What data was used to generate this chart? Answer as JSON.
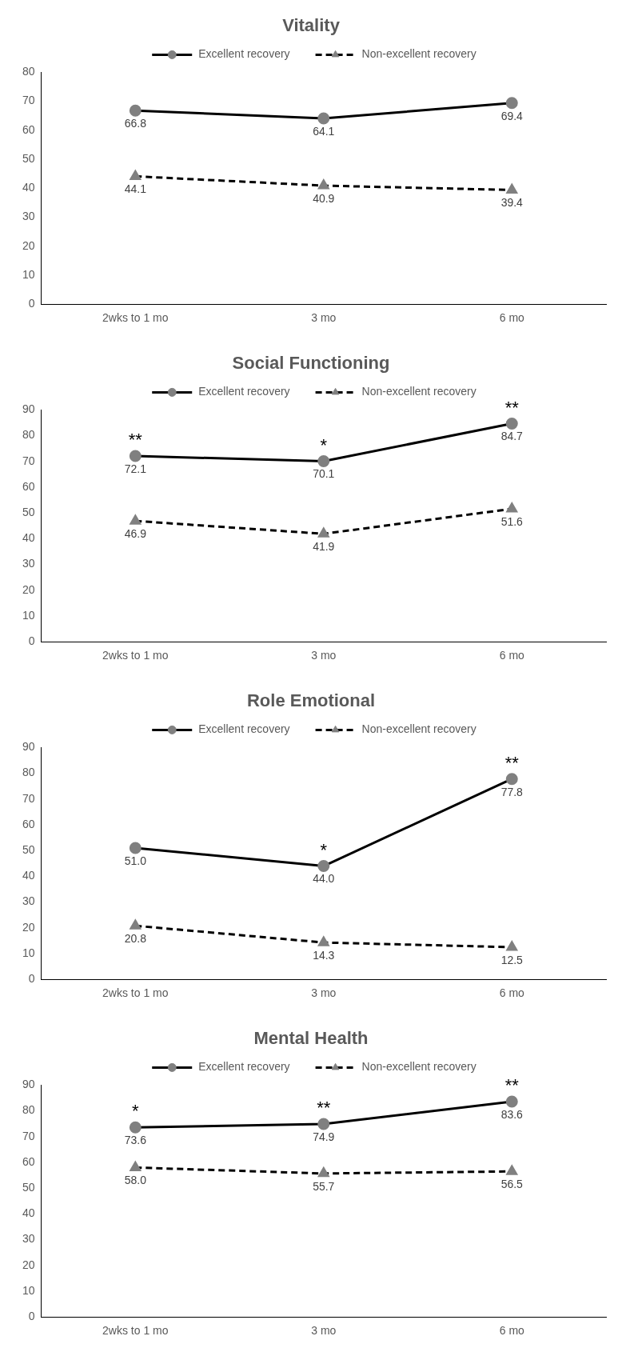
{
  "chart_data": [
    {
      "type": "line",
      "title": "Vitality",
      "categories": [
        "2wks to 1 mo",
        "3 mo",
        "6 mo"
      ],
      "ylim": [
        0,
        80
      ],
      "yticks": [
        0,
        10,
        20,
        30,
        40,
        50,
        60,
        70,
        80
      ],
      "grid": false,
      "legend": "top",
      "series": [
        {
          "name": "Excellent recovery",
          "color": "#000000",
          "values": [
            66.8,
            64.1,
            69.4
          ],
          "value_labels": [
            "66.8",
            "64.1",
            "69.4"
          ],
          "marker": "circle",
          "line_style": "solid"
        },
        {
          "name": "Non-excellent recovery",
          "color": "#000000",
          "values": [
            44.1,
            40.9,
            39.4
          ],
          "value_labels": [
            "44.1",
            "40.9",
            "39.4"
          ],
          "marker": "triangle",
          "line_style": "dashed"
        }
      ]
    },
    {
      "type": "line",
      "title": "Social Functioning",
      "categories": [
        "2wks to 1 mo",
        "3 mo",
        "6 mo"
      ],
      "ylim": [
        0,
        90
      ],
      "yticks": [
        0,
        10,
        20,
        30,
        40,
        50,
        60,
        70,
        80,
        90
      ],
      "grid": false,
      "legend": "top",
      "annotations": [
        {
          "text": "**",
          "x": "2wks to 1 mo",
          "y": 72.1
        },
        {
          "text": "*",
          "x": "3 mo",
          "y": 70.1
        },
        {
          "text": "**",
          "x": "6 mo",
          "y": 84.7
        }
      ],
      "series": [
        {
          "name": "Excellent recovery",
          "color": "#000000",
          "values": [
            72.1,
            70.1,
            84.7
          ],
          "value_labels": [
            "72.1",
            "70.1",
            "84.7"
          ],
          "marker": "circle",
          "line_style": "solid"
        },
        {
          "name": "Non-excellent recovery",
          "color": "#000000",
          "values": [
            46.9,
            41.9,
            51.6
          ],
          "value_labels": [
            "46.9",
            "41.9",
            "51.6"
          ],
          "marker": "triangle",
          "line_style": "dashed"
        }
      ]
    },
    {
      "type": "line",
      "title": "Role Emotional",
      "categories": [
        "2wks to 1 mo",
        "3 mo",
        "6 mo"
      ],
      "ylim": [
        0,
        90
      ],
      "yticks": [
        0,
        10,
        20,
        30,
        40,
        50,
        60,
        70,
        80,
        90
      ],
      "grid": false,
      "legend": "top",
      "annotations": [
        {
          "text": "*",
          "x": "3 mo",
          "y": 44.0
        },
        {
          "text": "**",
          "x": "6 mo",
          "y": 77.8
        }
      ],
      "series": [
        {
          "name": "Excellent recovery",
          "color": "#000000",
          "values": [
            51.0,
            44.0,
            77.8
          ],
          "value_labels": [
            "51.0",
            "44.0",
            "77.8"
          ],
          "marker": "circle",
          "line_style": "solid"
        },
        {
          "name": "Non-excellent recovery",
          "color": "#000000",
          "values": [
            20.8,
            14.3,
            12.5
          ],
          "value_labels": [
            "20.8",
            "14.3",
            "12.5"
          ],
          "marker": "triangle",
          "line_style": "dashed"
        }
      ]
    },
    {
      "type": "line",
      "title": "Mental Health",
      "categories": [
        "2wks to 1 mo",
        "3 mo",
        "6 mo"
      ],
      "ylim": [
        0,
        90
      ],
      "yticks": [
        0,
        10,
        20,
        30,
        40,
        50,
        60,
        70,
        80,
        90
      ],
      "grid": false,
      "legend": "top",
      "annotations": [
        {
          "text": "*",
          "x": "2wks to 1 mo",
          "y": 73.6
        },
        {
          "text": "**",
          "x": "3 mo",
          "y": 74.9
        },
        {
          "text": "**",
          "x": "6 mo",
          "y": 83.6
        }
      ],
      "series": [
        {
          "name": "Excellent recovery",
          "color": "#000000",
          "values": [
            73.6,
            74.9,
            83.6
          ],
          "value_labels": [
            "73.6",
            "74.9",
            "83.6"
          ],
          "marker": "circle",
          "line_style": "solid"
        },
        {
          "name": "Non-excellent recovery",
          "color": "#000000",
          "values": [
            58.0,
            55.7,
            56.5
          ],
          "value_labels": [
            "58.0",
            "55.7",
            "56.5"
          ],
          "marker": "triangle",
          "line_style": "dashed"
        }
      ]
    }
  ]
}
